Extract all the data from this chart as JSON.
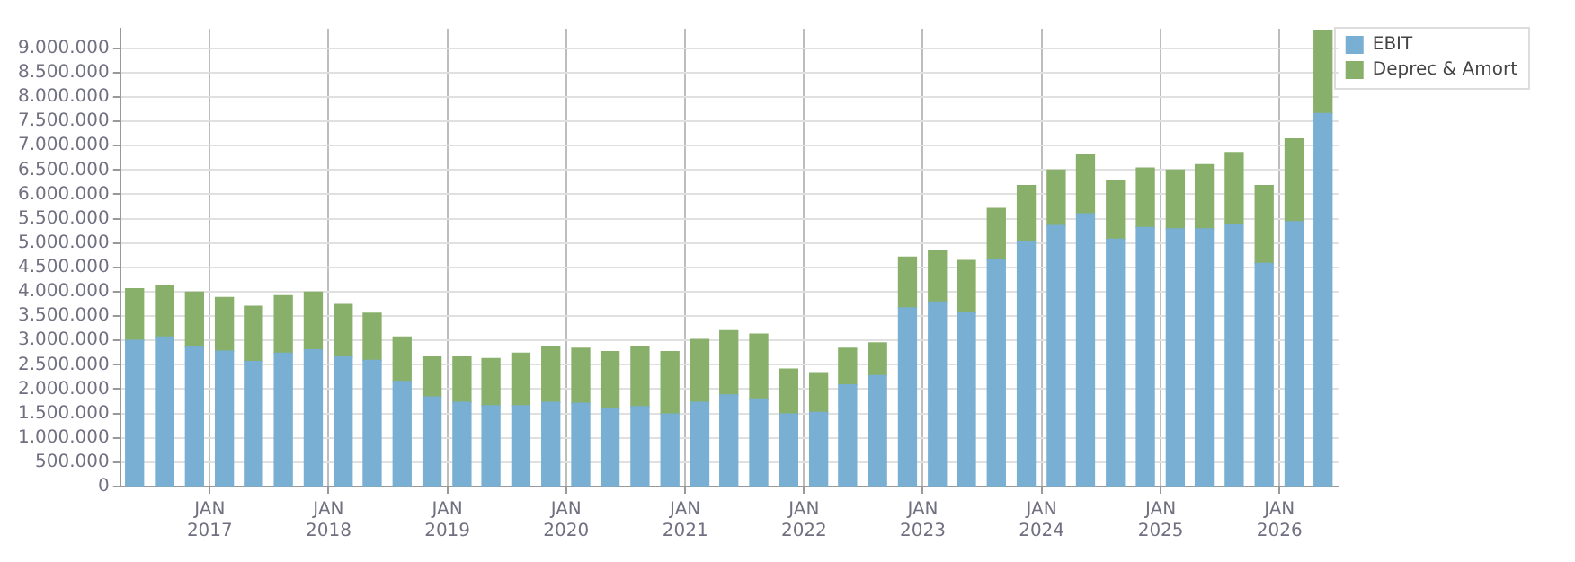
{
  "chart_data": {
    "type": "bar",
    "stacked": true,
    "grid": true,
    "legend": "top right",
    "x": [
      "2016-05-15",
      "2016-08-15",
      "2016-11-15",
      "2017-02-15",
      "2017-05-15",
      "2017-08-15",
      "2017-11-15",
      "2018-02-15",
      "2018-05-15",
      "2018-08-15",
      "2018-11-15",
      "2019-02-15",
      "2019-05-15",
      "2019-08-15",
      "2019-11-15",
      "2020-02-15",
      "2020-05-15",
      "2020-08-15",
      "2020-11-15",
      "2021-02-15",
      "2021-05-15",
      "2021-08-15",
      "2021-11-15",
      "2022-02-15",
      "2022-05-15",
      "2022-08-15",
      "2022-11-15",
      "2023-02-15",
      "2023-05-15",
      "2023-08-15",
      "2023-11-15",
      "2024-02-15",
      "2024-05-15",
      "2024-08-15",
      "2024-11-15",
      "2025-02-15",
      "2025-05-15",
      "2025-08-15",
      "2025-11-15",
      "2026-02-15",
      "2026-05-15"
    ],
    "series": [
      {
        "name": "EBIT",
        "color": "#78afd2",
        "values": [
          3000000,
          3070000,
          2880000,
          2780000,
          2570000,
          2740000,
          2810000,
          2660000,
          2590000,
          2160000,
          1840000,
          1730000,
          1660000,
          1660000,
          1730000,
          1710000,
          1590000,
          1640000,
          1490000,
          1730000,
          1880000,
          1800000,
          1490000,
          1520000,
          2090000,
          2280000,
          3670000,
          3790000,
          3570000,
          4650000,
          5030000,
          5360000,
          5600000,
          5080000,
          5320000,
          5290000,
          5290000,
          5390000,
          4580000,
          5440000,
          7660000
        ]
      },
      {
        "name": "Deprec & Amort",
        "color": "#88b06a",
        "values": [
          1060000,
          1060000,
          1110000,
          1100000,
          1130000,
          1180000,
          1180000,
          1080000,
          970000,
          910000,
          840000,
          950000,
          970000,
          1080000,
          1150000,
          1130000,
          1180000,
          1240000,
          1280000,
          1290000,
          1320000,
          1330000,
          920000,
          820000,
          750000,
          670000,
          1040000,
          1060000,
          1070000,
          1060000,
          1150000,
          1140000,
          1220000,
          1200000,
          1220000,
          1210000,
          1320000,
          1470000,
          1600000,
          1700000,
          1710000
        ]
      }
    ],
    "xlim": [
      "2016-04-01",
      "2026-07-01"
    ],
    "xticks": [
      {
        "value": "2017-01-01",
        "label": "JAN 2017"
      },
      {
        "value": "2018-01-01",
        "label": "JAN 2018"
      },
      {
        "value": "2019-01-01",
        "label": "JAN 2019"
      },
      {
        "value": "2020-01-01",
        "label": "JAN 2020"
      },
      {
        "value": "2021-01-01",
        "label": "JAN 2021"
      },
      {
        "value": "2022-01-01",
        "label": "JAN 2022"
      },
      {
        "value": "2023-01-01",
        "label": "JAN 2023"
      },
      {
        "value": "2024-01-01",
        "label": "JAN 2024"
      },
      {
        "value": "2025-01-01",
        "label": "JAN 2025"
      },
      {
        "value": "2026-01-01",
        "label": "JAN 2026"
      }
    ],
    "ylim": [
      0,
      9400000
    ],
    "yticks": [
      0,
      {
        "value": 500000,
        "label": "500.000"
      },
      {
        "value": 1000000,
        "label": "1.000.000"
      },
      {
        "value": 1500000,
        "label": "1.500.000"
      },
      {
        "value": 2000000,
        "label": "2.000.000"
      },
      {
        "value": 2500000,
        "label": "2.500.000"
      },
      {
        "value": 3000000,
        "label": "3.000.000"
      },
      {
        "value": 3500000,
        "label": "3.500.000"
      },
      {
        "value": 4000000,
        "label": "4.000.000"
      },
      {
        "value": 4500000,
        "label": "4.500.000"
      },
      {
        "value": 5000000,
        "label": "5.000.000"
      },
      {
        "value": 5500000,
        "label": "5.500.000"
      },
      {
        "value": 6000000,
        "label": "6.000.000"
      },
      {
        "value": 6500000,
        "label": "6.500.000"
      },
      {
        "value": 7000000,
        "label": "7.000.000"
      },
      {
        "value": 7500000,
        "label": "7.500.000"
      },
      {
        "value": 8000000,
        "label": "8.000.000"
      },
      {
        "value": 8500000,
        "label": "8.500.000"
      },
      {
        "value": 9000000,
        "label": "9.000.000"
      }
    ]
  }
}
